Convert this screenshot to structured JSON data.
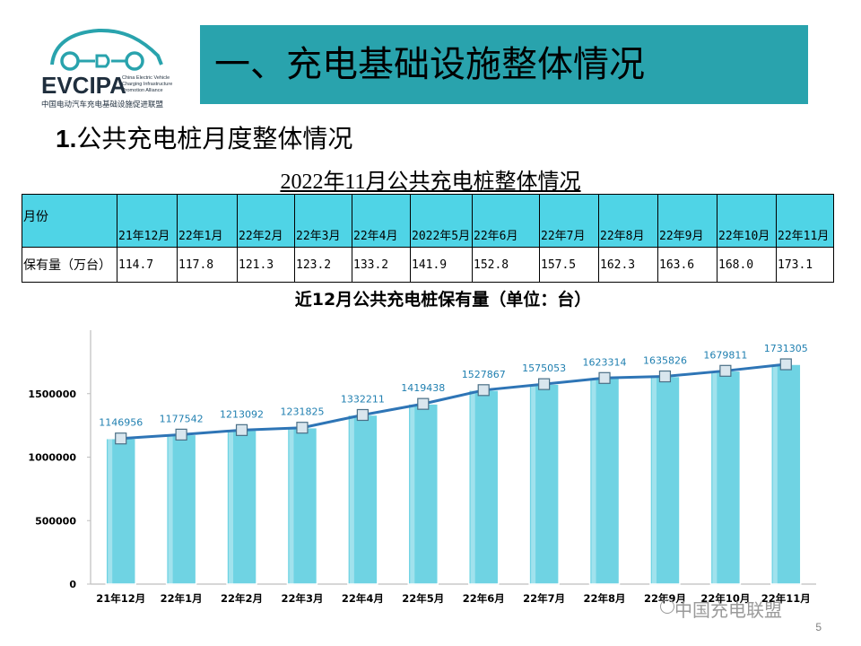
{
  "logo": {
    "brand": "EVCIPA",
    "english_lines": [
      "China Electric Vehicle",
      "Charging Infrastructure",
      "Promotion Alliance"
    ],
    "chinese_name": "中国电动汽车充电基础设施促进联盟"
  },
  "header": {
    "title": "一、充电基础设施整体情况"
  },
  "section": {
    "number": "1.",
    "title": "公共充电桩月度整体情况"
  },
  "table": {
    "title": "2022年11月公共充电桩整体情况",
    "row_label_month": "月份",
    "row_label_value": "保有量（万台）",
    "months": [
      "21年12月",
      "22年1月",
      "22年2月",
      "22年3月",
      "22年4月",
      "2022年5月",
      "22年6月",
      "22年7月",
      "22年8月",
      "22年9月",
      "22年10月",
      "22年11月"
    ],
    "values": [
      "114.7",
      "117.8",
      "121.3",
      "123.2",
      "133.2",
      "141.9",
      "152.8",
      "157.5",
      "162.3",
      "163.6",
      "168.0",
      "173.1"
    ]
  },
  "chart_data": {
    "type": "bar",
    "title": "近12月公共充电桩保有量（单位：台）",
    "categories": [
      "21年12月",
      "22年1月",
      "22年2月",
      "22年3月",
      "22年4月",
      "22年5月",
      "22年6月",
      "22年7月",
      "22年8月",
      "22年9月",
      "22年10月",
      "22年11月"
    ],
    "values": [
      1146956,
      1177542,
      1213092,
      1231825,
      1332211,
      1419438,
      1527867,
      1575053,
      1623314,
      1635826,
      1679811,
      1731305
    ],
    "line_overlay": true,
    "ylim": [
      0,
      2000000
    ],
    "yticks": [
      0,
      500000,
      1000000,
      1500000
    ],
    "xlabel": "",
    "ylabel": "",
    "bar_color": "#6fd3e3",
    "line_color": "#2e75b6"
  },
  "footer": {
    "page_number": "5",
    "watermark": "中国充电联盟"
  }
}
